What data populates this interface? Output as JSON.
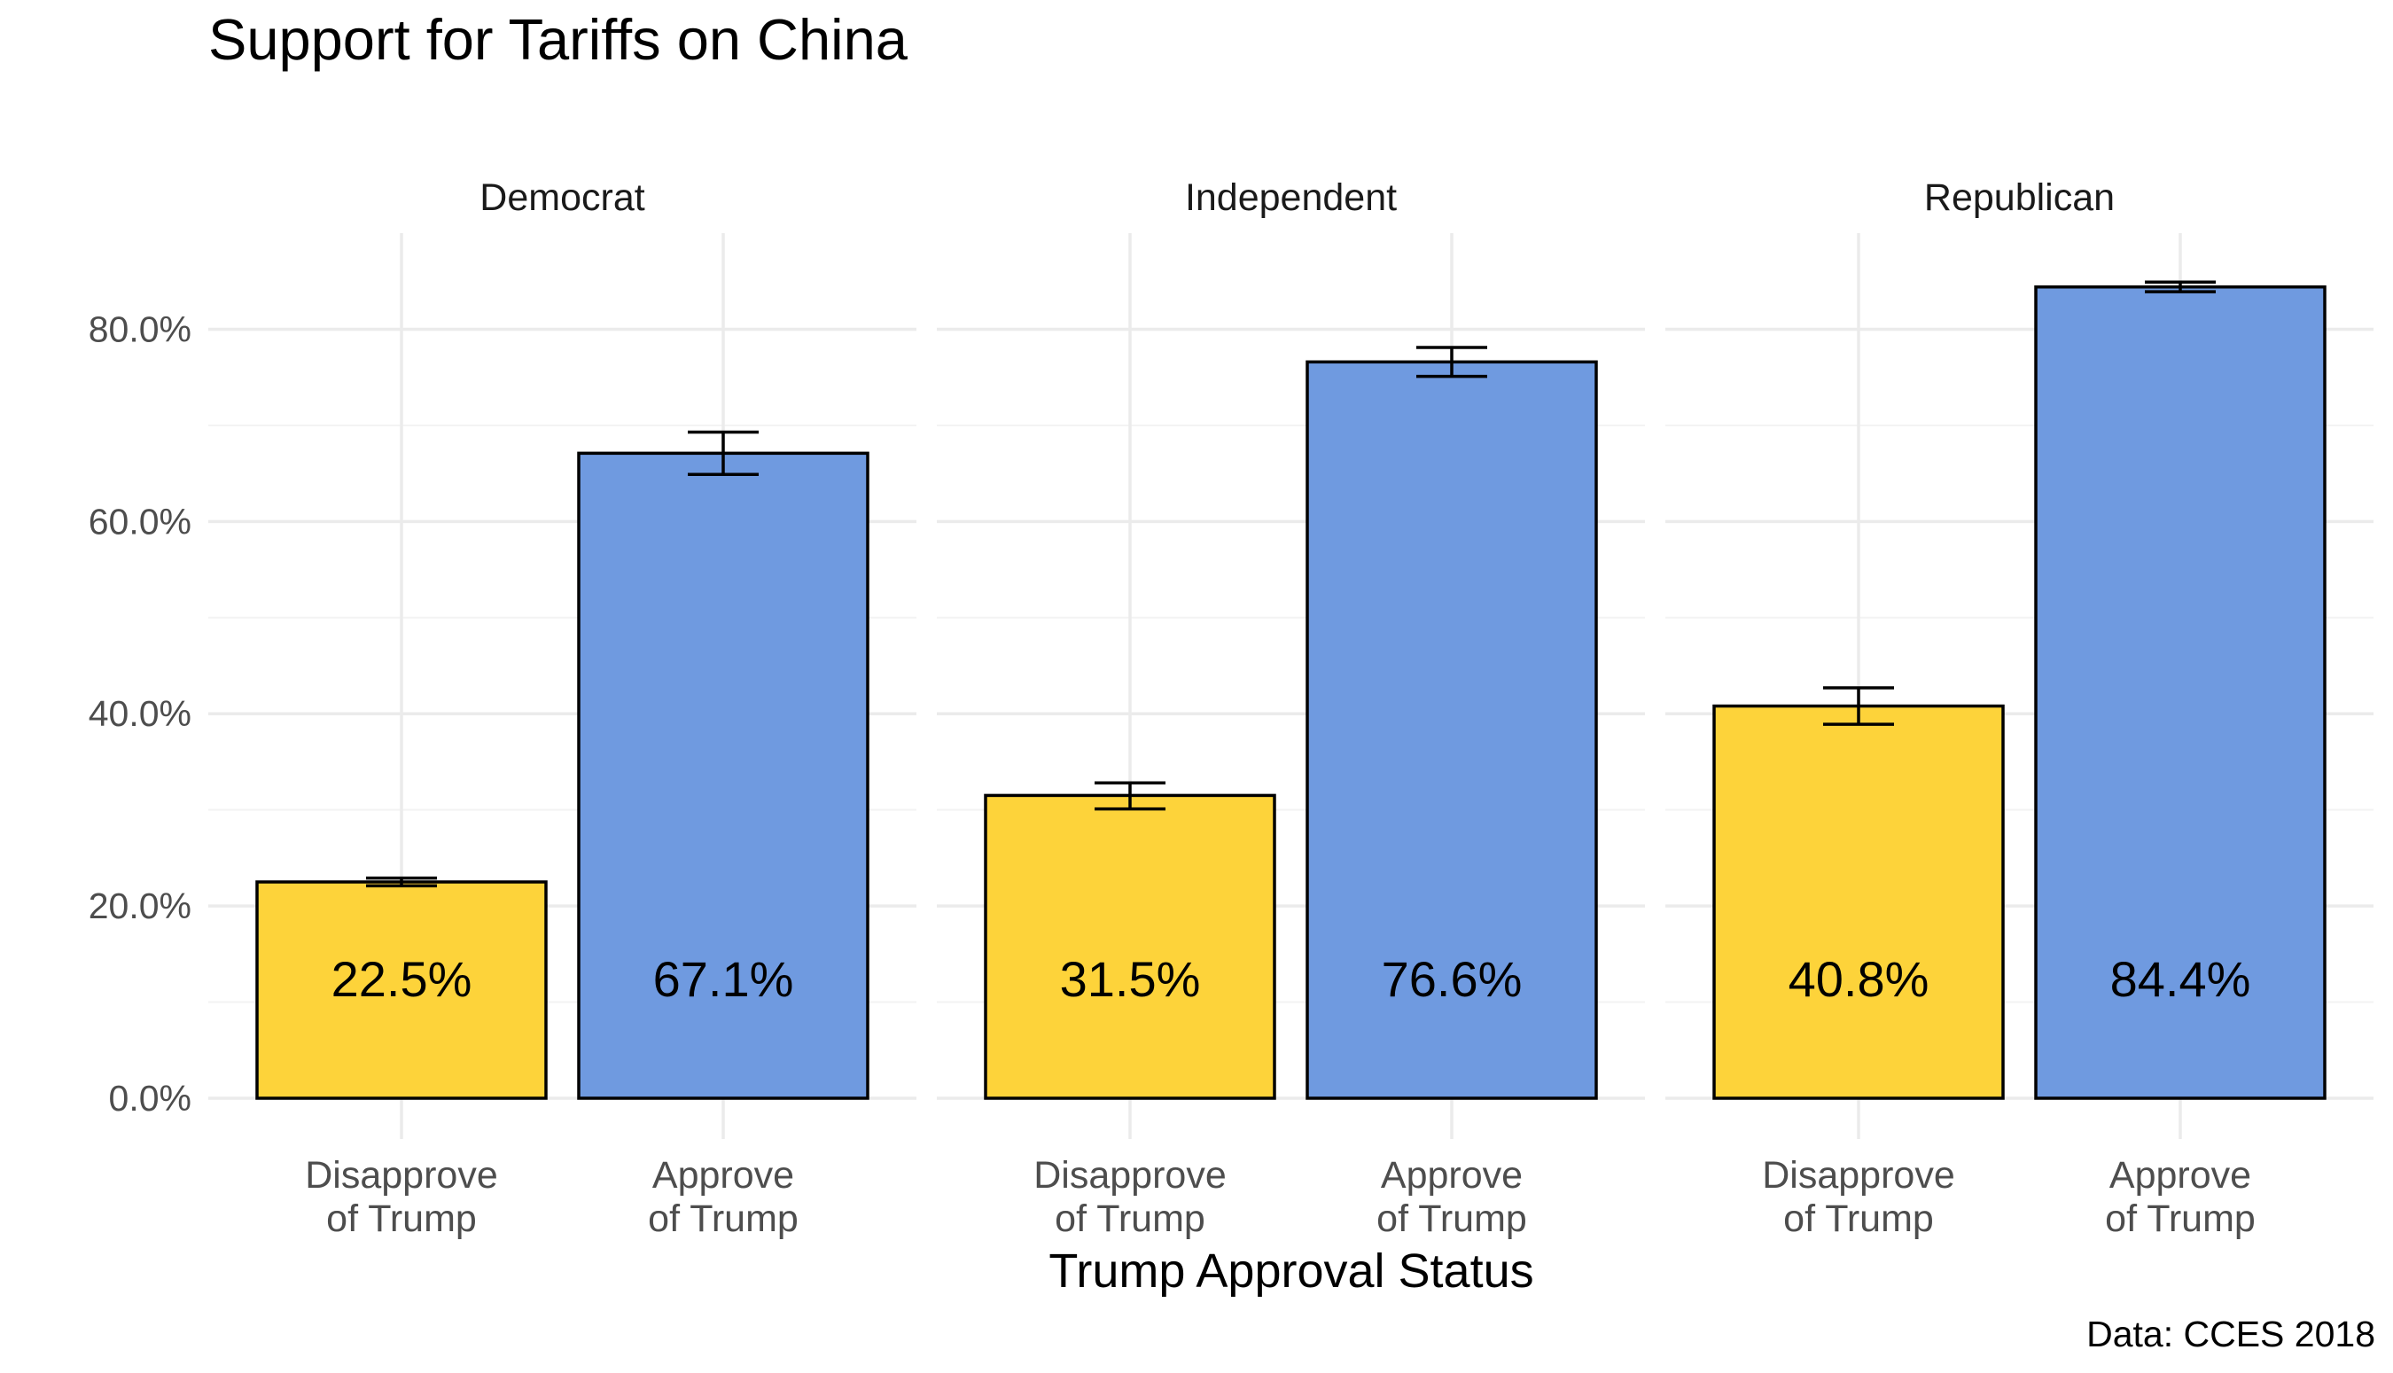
{
  "chart_data": {
    "type": "bar",
    "title": "Support for Tariffs on China",
    "xlabel": "Trump Approval Status",
    "ylabel": "",
    "caption": "Data: CCES 2018",
    "ylim": [
      0,
      0.9
    ],
    "y_ticks": [
      0,
      0.2,
      0.4,
      0.6,
      0.8
    ],
    "y_tick_labels": [
      "0.0%",
      "20.0%",
      "40.0%",
      "60.0%",
      "80.0%"
    ],
    "grid": true,
    "legend": "none",
    "categories": [
      "Disapprove\nof Trump",
      "Approve\nof Trump"
    ],
    "colors": {
      "Disapprove\nof Trump": "#FDD33A",
      "Approve\nof Trump": "#6F9AE0"
    },
    "facets": [
      {
        "name": "Democrat",
        "values": [
          0.225,
          0.671
        ],
        "labels": [
          "22.5%",
          "67.1%"
        ],
        "err_low": [
          0.221,
          0.649
        ],
        "err_high": [
          0.229,
          0.693
        ]
      },
      {
        "name": "Independent",
        "values": [
          0.315,
          0.766
        ],
        "labels": [
          "31.5%",
          "76.6%"
        ],
        "err_low": [
          0.301,
          0.751
        ],
        "err_high": [
          0.328,
          0.781
        ]
      },
      {
        "name": "Republican",
        "values": [
          0.408,
          0.844
        ],
        "labels": [
          "40.8%",
          "84.4%"
        ],
        "err_low": [
          0.389,
          0.839
        ],
        "err_high": [
          0.427,
          0.849
        ]
      }
    ]
  }
}
